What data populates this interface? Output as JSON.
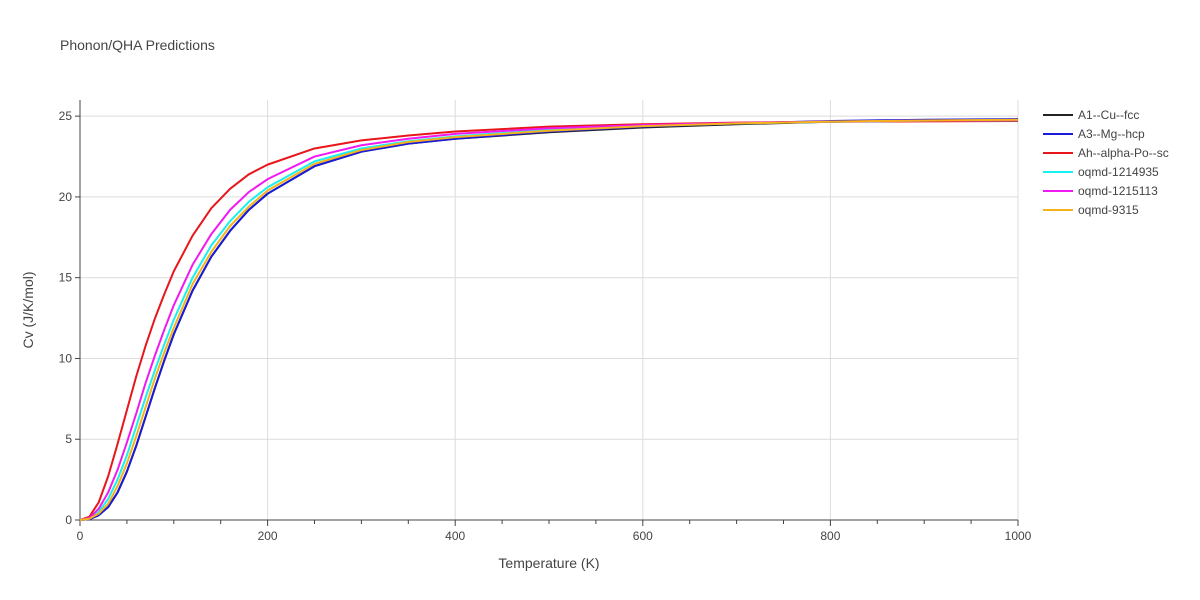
{
  "chart_data": {
    "type": "line",
    "title": "Phonon/QHA Predictions",
    "xlabel": "Temperature (K)",
    "ylabel": "Cv (J/K/mol)",
    "xlim": [
      0,
      1000
    ],
    "ylim": [
      0,
      26
    ],
    "x_ticks": [
      0,
      200,
      400,
      600,
      800,
      1000
    ],
    "y_ticks": [
      0,
      5,
      10,
      15,
      20,
      25
    ],
    "x_tick_labels": [
      "0",
      "200",
      "400",
      "600",
      "800",
      "1000"
    ],
    "y_tick_labels": [
      "0",
      "5",
      "10",
      "15",
      "20",
      "25"
    ],
    "grid": true,
    "legend_position": "top-right",
    "x": [
      0,
      10,
      20,
      30,
      40,
      50,
      60,
      70,
      80,
      90,
      100,
      120,
      140,
      160,
      180,
      200,
      250,
      300,
      350,
      400,
      500,
      600,
      700,
      800,
      900,
      1000
    ],
    "series": [
      {
        "name": "A1--Cu--fcc",
        "color": "#222222",
        "values": [
          0,
          0.05,
          0.3,
          0.8,
          1.7,
          3.0,
          4.6,
          6.4,
          8.2,
          9.9,
          11.5,
          14.2,
          16.3,
          17.9,
          19.2,
          20.2,
          21.9,
          22.8,
          23.3,
          23.6,
          24.0,
          24.3,
          24.5,
          24.65,
          24.75,
          24.8
        ]
      },
      {
        "name": "A3--Mg--hcp",
        "color": "#1a1adb",
        "values": [
          0,
          0.05,
          0.3,
          0.8,
          1.7,
          3.0,
          4.6,
          6.4,
          8.2,
          9.9,
          11.5,
          14.2,
          16.3,
          17.9,
          19.2,
          20.2,
          21.9,
          22.8,
          23.3,
          23.6,
          24.05,
          24.35,
          24.55,
          24.7,
          24.78,
          24.82
        ]
      },
      {
        "name": "Ah--alpha-Po--sc",
        "color": "#e8161b",
        "values": [
          0,
          0.2,
          1.1,
          2.7,
          4.7,
          6.8,
          8.9,
          10.8,
          12.5,
          14.0,
          15.4,
          17.6,
          19.3,
          20.5,
          21.4,
          22.0,
          23.0,
          23.5,
          23.8,
          24.05,
          24.35,
          24.5,
          24.6,
          24.65,
          24.68,
          24.7
        ]
      },
      {
        "name": "oqmd-1214935",
        "color": "#19f0f0",
        "values": [
          0,
          0.1,
          0.5,
          1.3,
          2.5,
          4.0,
          5.8,
          7.6,
          9.3,
          10.9,
          12.4,
          15.0,
          17.0,
          18.5,
          19.7,
          20.6,
          22.2,
          23.0,
          23.45,
          23.75,
          24.15,
          24.4,
          24.55,
          24.65,
          24.72,
          24.75
        ]
      },
      {
        "name": "oqmd-1215113",
        "color": "#f019f0",
        "values": [
          0,
          0.12,
          0.7,
          1.7,
          3.1,
          4.8,
          6.6,
          8.5,
          10.2,
          11.8,
          13.3,
          15.8,
          17.7,
          19.2,
          20.3,
          21.1,
          22.5,
          23.2,
          23.6,
          23.9,
          24.25,
          24.45,
          24.58,
          24.66,
          24.72,
          24.76
        ]
      },
      {
        "name": "oqmd-9315",
        "color": "#f5b21a",
        "values": [
          0,
          0.08,
          0.4,
          1.0,
          2.1,
          3.5,
          5.2,
          7.0,
          8.8,
          10.4,
          11.9,
          14.6,
          16.6,
          18.2,
          19.4,
          20.4,
          22.05,
          22.9,
          23.4,
          23.7,
          24.1,
          24.38,
          24.55,
          24.66,
          24.73,
          24.78
        ]
      }
    ]
  }
}
